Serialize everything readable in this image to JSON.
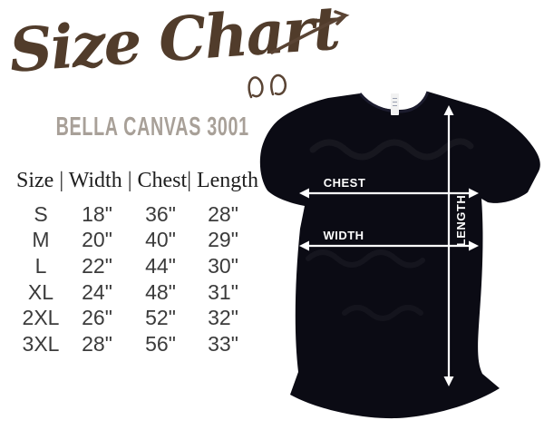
{
  "page": {
    "background": "#ffffff"
  },
  "title": {
    "text": "Size Chart",
    "color": "#513c2b"
  },
  "subtitle": {
    "text": "BELLA CANVAS 3001",
    "color": "#a8a098"
  },
  "size_table": {
    "header_display": "Size | Width | Chest| Length",
    "columns": [
      "Size",
      "Width",
      "Chest",
      "Length"
    ],
    "rows": [
      {
        "size": "S",
        "width": "18\"",
        "chest": "36\"",
        "length": "28\""
      },
      {
        "size": "M",
        "width": "20\"",
        "chest": "40\"",
        "length": "29\""
      },
      {
        "size": "L",
        "width": "22\"",
        "chest": "44\"",
        "length": "30\""
      },
      {
        "size": "XL",
        "width": "24\"",
        "chest": "48\"",
        "length": "31\""
      },
      {
        "size": "2XL",
        "width": "26\"",
        "chest": "52\"",
        "length": "32\""
      },
      {
        "size": "3XL",
        "width": "28\"",
        "chest": "56\"",
        "length": "33\""
      }
    ]
  },
  "shirt_diagram": {
    "labels": {
      "chest": "CHEST",
      "width": "WIDTH",
      "length": "LENGTH"
    },
    "shirt_color": "#0b0b14",
    "arrow_color": "#ffffff",
    "garment": "black t-shirt photo with measurement arrows"
  },
  "chart_data": {
    "type": "table",
    "title": "Size Chart",
    "subtitle": "BELLA CANVAS 3001",
    "columns": [
      "Size",
      "Width",
      "Chest",
      "Length"
    ],
    "rows": [
      [
        "S",
        "18\"",
        "36\"",
        "28\""
      ],
      [
        "M",
        "20\"",
        "40\"",
        "29\""
      ],
      [
        "L",
        "22\"",
        "44\"",
        "30\""
      ],
      [
        "XL",
        "24\"",
        "48\"",
        "31\""
      ],
      [
        "2XL",
        "26\"",
        "52\"",
        "32\""
      ],
      [
        "3XL",
        "28\"",
        "56\"",
        "33\""
      ]
    ],
    "units": "inches",
    "measurement_labels_on_diagram": [
      "CHEST",
      "WIDTH",
      "LENGTH"
    ]
  }
}
